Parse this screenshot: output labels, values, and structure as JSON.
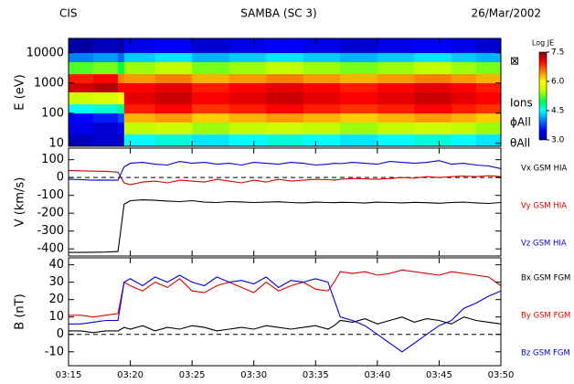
{
  "header": {
    "left": "CIS",
    "center": "SAMBA (SC 3)",
    "right": "26/Mar/2002"
  },
  "chart_data": [
    {
      "type": "heatmap",
      "ylabel": "E (eV)",
      "yscale": "log",
      "ylim": [
        8,
        30000
      ],
      "yticks": [
        10,
        100,
        1000,
        10000
      ],
      "x": [
        195,
        197,
        199,
        199.5,
        202,
        205,
        208,
        211,
        214,
        217,
        220,
        223,
        226,
        228,
        230
      ],
      "y": [
        8,
        20,
        50,
        100,
        200,
        500,
        1000,
        2000,
        5000,
        10000,
        30000
      ],
      "z": [
        [
          3.2,
          3.3,
          3.2,
          4.5,
          4.6,
          4.4,
          4.5,
          4.6,
          4.5,
          4.4,
          4.5,
          4.6,
          4.5,
          4.4
        ],
        [
          3.4,
          3.3,
          3.5,
          5.5,
          5.6,
          5.4,
          5.5,
          5.6,
          5.5,
          5.4,
          5.5,
          5.6,
          5.5,
          5.4
        ],
        [
          3.5,
          3.6,
          3.8,
          6.3,
          6.4,
          6.2,
          6.3,
          6.4,
          6.3,
          6.2,
          6.3,
          6.4,
          6.3,
          6.2
        ],
        [
          4.5,
          4.6,
          4.8,
          6.9,
          7.0,
          6.8,
          6.9,
          7.0,
          6.9,
          6.8,
          6.9,
          7.0,
          6.9,
          6.8
        ],
        [
          5.6,
          5.7,
          6.0,
          7.1,
          7.2,
          7.0,
          7.1,
          7.2,
          7.1,
          7.0,
          7.1,
          7.2,
          7.1,
          7.0
        ],
        [
          7.2,
          7.3,
          7.0,
          7.0,
          7.1,
          6.9,
          7.0,
          7.1,
          7.0,
          6.9,
          7.0,
          7.1,
          7.0,
          6.9
        ],
        [
          6.9,
          7.0,
          6.5,
          6.4,
          6.5,
          6.3,
          6.4,
          6.5,
          6.4,
          6.3,
          6.4,
          6.5,
          6.4,
          6.3
        ],
        [
          5.2,
          5.3,
          5.0,
          5.4,
          5.5,
          5.3,
          5.4,
          5.5,
          5.4,
          5.3,
          5.4,
          5.5,
          5.4,
          5.3
        ],
        [
          4.0,
          4.1,
          3.9,
          4.3,
          4.4,
          4.2,
          4.3,
          4.4,
          4.3,
          4.2,
          4.3,
          4.4,
          4.3,
          4.2
        ],
        [
          3.1,
          3.2,
          3.1,
          3.4,
          3.5,
          3.3,
          3.4,
          3.5,
          3.4,
          3.3,
          3.4,
          3.5,
          3.4,
          3.3
        ]
      ],
      "colorbar_title": "Log JE",
      "clim": [
        3,
        7.5
      ],
      "cticks": [
        {
          "value": 3,
          "label": "3.0"
        },
        {
          "value": 4.5,
          "label": "4.5"
        },
        {
          "value": 6,
          "label": "6.0"
        },
        {
          "value": 7.5,
          "label": "7.5"
        }
      ],
      "colorscale": [
        "#00008f",
        "#0000ff",
        "#0080ff",
        "#00ffff",
        "#00ff40",
        "#c0ff00",
        "#ffff00",
        "#ff8000",
        "#ff0000",
        "#800000"
      ],
      "side_labels": [
        "⊠",
        "Ions",
        "ϕAll",
        "θAll"
      ]
    },
    {
      "type": "line",
      "ylabel": "V (km/s)",
      "ylim": [
        -440,
        165
      ],
      "yticks": [
        100,
        0,
        -100,
        -200,
        -300,
        -400
      ],
      "reference_line": 0,
      "x": [
        195,
        196,
        197,
        198,
        199,
        199.5,
        200,
        201,
        202,
        203,
        204,
        205,
        206,
        207,
        208,
        209,
        210,
        211,
        212,
        213,
        214,
        215,
        216,
        216.5,
        217,
        218,
        219,
        220,
        221,
        222,
        223,
        224,
        225,
        226,
        227,
        228,
        229,
        230
      ],
      "series": [
        {
          "name": "Vx GSM HIA",
          "color": "#000000",
          "values": [
            -420,
            -420,
            -419,
            -418,
            -415,
            -150,
            -130,
            -125,
            -128,
            -132,
            -135,
            -130,
            -138,
            -140,
            -135,
            -137,
            -140,
            -138,
            -136,
            -140,
            -142,
            -138,
            -140,
            -141,
            -139,
            -140,
            -143,
            -138,
            -140,
            -142,
            -139,
            -141,
            -144,
            -140,
            -138,
            -142,
            -145,
            -140
          ]
        },
        {
          "name": "Vy GSM HIA",
          "color": "#e00000",
          "values": [
            40,
            38,
            36,
            35,
            30,
            -30,
            -40,
            -25,
            -20,
            -30,
            -15,
            -20,
            -25,
            -10,
            -20,
            -30,
            -15,
            -25,
            -10,
            -20,
            -15,
            -10,
            -12,
            -15,
            -10,
            -5,
            -8,
            -10,
            -5,
            0,
            -3,
            5,
            0,
            5,
            8,
            5,
            10,
            5
          ]
        },
        {
          "name": "Vz GSM HIA",
          "color": "#0000e0",
          "values": [
            -10,
            -12,
            -15,
            -14,
            -15,
            60,
            80,
            85,
            75,
            70,
            90,
            80,
            85,
            75,
            80,
            70,
            85,
            80,
            75,
            85,
            80,
            70,
            75,
            80,
            78,
            85,
            80,
            75,
            90,
            85,
            80,
            85,
            95,
            75,
            80,
            70,
            65,
            50
          ]
        }
      ]
    },
    {
      "type": "line",
      "ylabel": "B (nT)",
      "ylim": [
        -18,
        44
      ],
      "yticks": [
        40,
        30,
        20,
        10,
        0,
        -10
      ],
      "reference_line": 0,
      "xlim": [
        195,
        230
      ],
      "xticks": [
        {
          "value": 195,
          "label": "03:15"
        },
        {
          "value": 200,
          "label": "03:20"
        },
        {
          "value": 205,
          "label": "03:25"
        },
        {
          "value": 210,
          "label": "03:30"
        },
        {
          "value": 215,
          "label": "03:35"
        },
        {
          "value": 220,
          "label": "03:40"
        },
        {
          "value": 225,
          "label": "03:45"
        },
        {
          "value": 230,
          "label": "03:50"
        }
      ],
      "x": [
        195,
        196,
        197,
        198,
        199,
        199.5,
        200,
        201,
        202,
        203,
        204,
        205,
        206,
        207,
        208,
        209,
        210,
        211,
        212,
        213,
        214,
        215,
        216,
        216.5,
        217,
        218,
        219,
        220,
        221,
        222,
        223,
        224,
        225,
        226,
        227,
        228,
        229,
        230
      ],
      "series": [
        {
          "name": "Bx GSM FGM",
          "color": "#000000",
          "values": [
            2,
            2,
            1,
            2,
            2,
            4,
            3,
            5,
            2,
            4,
            3,
            5,
            4,
            2,
            3,
            4,
            3,
            5,
            4,
            3,
            4,
            5,
            3,
            5,
            8,
            7,
            9,
            6,
            8,
            10,
            7,
            9,
            8,
            6,
            10,
            8,
            7,
            6
          ]
        },
        {
          "name": "By GSM FGM",
          "color": "#e00000",
          "values": [
            11,
            11,
            10,
            11,
            12,
            30,
            28,
            25,
            30,
            27,
            32,
            25,
            24,
            28,
            30,
            27,
            24,
            30,
            25,
            28,
            30,
            26,
            25,
            30,
            36,
            35,
            36,
            34,
            35,
            37,
            36,
            35,
            34,
            36,
            35,
            34,
            33,
            28
          ]
        },
        {
          "name": "Bz GSM FGM",
          "color": "#0000e0",
          "values": [
            6,
            6,
            7,
            8,
            8,
            30,
            32,
            28,
            33,
            30,
            34,
            30,
            28,
            33,
            30,
            31,
            29,
            33,
            27,
            31,
            30,
            32,
            30,
            20,
            10,
            8,
            5,
            0,
            -5,
            -10,
            -5,
            0,
            5,
            8,
            15,
            18,
            22,
            25
          ]
        }
      ]
    }
  ]
}
